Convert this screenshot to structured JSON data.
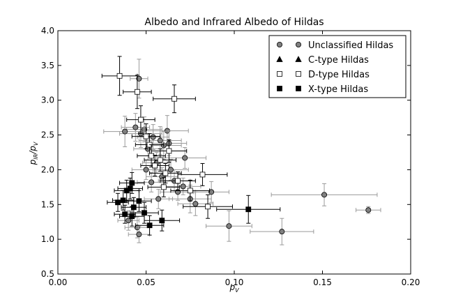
{
  "chart_data": {
    "type": "scatter",
    "title": "Albedo and Infrared Albedo of Hildas",
    "xlabel_main": "p",
    "xlabel_sub": "V",
    "ylabel_main": "p",
    "ylabel_sub_num": "IR",
    "ylabel_sep": "/p",
    "ylabel_sub_den": "V",
    "xlim": [
      0.0,
      0.2
    ],
    "ylim": [
      0.5,
      4.0
    ],
    "xticks": [
      0.0,
      0.05,
      0.1,
      0.15,
      0.2
    ],
    "xtick_labels": [
      "0.00",
      "0.05",
      "0.10",
      "0.15",
      "0.20"
    ],
    "yticks": [
      0.5,
      1.0,
      1.5,
      2.0,
      2.5,
      3.0,
      3.5,
      4.0
    ],
    "ytick_labels": [
      "0.5",
      "1.0",
      "1.5",
      "2.0",
      "2.5",
      "3.0",
      "3.5",
      "4.0"
    ],
    "grid": false,
    "legend_position": "top-right",
    "series": [
      {
        "name": "Unclassified Hildas",
        "marker": "circle",
        "color": "#808080",
        "error_color": "#9a9a9a",
        "points": [
          {
            "x": 0.176,
            "y": 1.42,
            "xerr": 0.007,
            "yerr": 0.05
          },
          {
            "x": 0.151,
            "y": 1.64,
            "xerr": 0.03,
            "yerr": 0.16
          },
          {
            "x": 0.127,
            "y": 1.11,
            "xerr": 0.018,
            "yerr": 0.19
          },
          {
            "x": 0.097,
            "y": 1.19,
            "xerr": 0.013,
            "yerr": 0.22
          },
          {
            "x": 0.087,
            "y": 1.68,
            "xerr": 0.01,
            "yerr": 0.15
          },
          {
            "x": 0.078,
            "y": 1.51,
            "xerr": 0.01,
            "yerr": 0.17
          },
          {
            "x": 0.075,
            "y": 1.58,
            "xerr": 0.012,
            "yerr": 0.2
          },
          {
            "x": 0.071,
            "y": 1.76,
            "xerr": 0.01,
            "yerr": 0.12
          },
          {
            "x": 0.066,
            "y": 1.84,
            "xerr": 0.009,
            "yerr": 0.16
          },
          {
            "x": 0.064,
            "y": 2.0,
            "xerr": 0.01,
            "yerr": 0.15
          },
          {
            "x": 0.062,
            "y": 2.56,
            "xerr": 0.012,
            "yerr": 0.22
          },
          {
            "x": 0.06,
            "y": 2.35,
            "xerr": 0.01,
            "yerr": 0.2
          },
          {
            "x": 0.058,
            "y": 2.42,
            "xerr": 0.012,
            "yerr": 0.2
          },
          {
            "x": 0.056,
            "y": 2.1,
            "xerr": 0.008,
            "yerr": 0.15
          },
          {
            "x": 0.054,
            "y": 2.47,
            "xerr": 0.009,
            "yerr": 0.18
          },
          {
            "x": 0.053,
            "y": 1.82,
            "xerr": 0.008,
            "yerr": 0.14
          },
          {
            "x": 0.051,
            "y": 2.3,
            "xerr": 0.008,
            "yerr": 0.16
          },
          {
            "x": 0.05,
            "y": 2.0,
            "xerr": 0.008,
            "yerr": 0.14
          },
          {
            "x": 0.049,
            "y": 2.58,
            "xerr": 0.01,
            "yerr": 0.18
          },
          {
            "x": 0.047,
            "y": 2.52,
            "xerr": 0.012,
            "yerr": 0.2
          },
          {
            "x": 0.046,
            "y": 3.31,
            "xerr": 0.005,
            "yerr": 0.28
          },
          {
            "x": 0.044,
            "y": 2.61,
            "xerr": 0.008,
            "yerr": 0.2
          },
          {
            "x": 0.045,
            "y": 1.17,
            "xerr": 0.007,
            "yerr": 0.15
          },
          {
            "x": 0.046,
            "y": 1.07,
            "xerr": 0.006,
            "yerr": 0.12
          },
          {
            "x": 0.04,
            "y": 1.27,
            "xerr": 0.006,
            "yerr": 0.14
          },
          {
            "x": 0.038,
            "y": 2.55,
            "xerr": 0.012,
            "yerr": 0.22
          },
          {
            "x": 0.057,
            "y": 1.58,
            "xerr": 0.008,
            "yerr": 0.14
          },
          {
            "x": 0.068,
            "y": 1.68,
            "xerr": 0.01,
            "yerr": 0.12
          },
          {
            "x": 0.072,
            "y": 2.17,
            "xerr": 0.012,
            "yerr": 0.15
          },
          {
            "x": 0.063,
            "y": 2.38,
            "xerr": 0.01,
            "yerr": 0.18
          },
          {
            "x": 0.059,
            "y": 1.9,
            "xerr": 0.009,
            "yerr": 0.13
          }
        ]
      },
      {
        "name": "C-type Hildas",
        "marker": "triangle",
        "color": "#000000",
        "error_color": "#000000",
        "points": []
      },
      {
        "name": "D-type Hildas",
        "marker": "square",
        "color": "#ffffff",
        "error_color": "#000000",
        "points": [
          {
            "x": 0.035,
            "y": 3.35,
            "xerr": 0.01,
            "yerr": 0.28
          },
          {
            "x": 0.045,
            "y": 3.12,
            "xerr": 0.008,
            "yerr": 0.24
          },
          {
            "x": 0.066,
            "y": 3.02,
            "xerr": 0.012,
            "yerr": 0.2
          },
          {
            "x": 0.047,
            "y": 2.72,
            "xerr": 0.008,
            "yerr": 0.2
          },
          {
            "x": 0.05,
            "y": 2.48,
            "xerr": 0.008,
            "yerr": 0.18
          },
          {
            "x": 0.052,
            "y": 2.36,
            "xerr": 0.008,
            "yerr": 0.16
          },
          {
            "x": 0.053,
            "y": 2.2,
            "xerr": 0.008,
            "yerr": 0.16
          },
          {
            "x": 0.055,
            "y": 2.06,
            "xerr": 0.008,
            "yerr": 0.15
          },
          {
            "x": 0.058,
            "y": 2.14,
            "xerr": 0.009,
            "yerr": 0.16
          },
          {
            "x": 0.061,
            "y": 1.95,
            "xerr": 0.009,
            "yerr": 0.14
          },
          {
            "x": 0.063,
            "y": 2.27,
            "xerr": 0.01,
            "yerr": 0.16
          },
          {
            "x": 0.068,
            "y": 1.84,
            "xerr": 0.01,
            "yerr": 0.13
          },
          {
            "x": 0.075,
            "y": 1.7,
            "xerr": 0.011,
            "yerr": 0.15
          },
          {
            "x": 0.082,
            "y": 1.93,
            "xerr": 0.014,
            "yerr": 0.16
          },
          {
            "x": 0.085,
            "y": 1.47,
            "xerr": 0.014,
            "yerr": 0.17
          },
          {
            "x": 0.06,
            "y": 1.75,
            "xerr": 0.009,
            "yerr": 0.14
          }
        ]
      },
      {
        "name": "X-type Hildas",
        "marker": "square",
        "color": "#000000",
        "error_color": "#000000",
        "points": [
          {
            "x": 0.108,
            "y": 1.43,
            "xerr": 0.018,
            "yerr": 0.2
          },
          {
            "x": 0.059,
            "y": 1.27,
            "xerr": 0.01,
            "yerr": 0.15
          },
          {
            "x": 0.052,
            "y": 1.2,
            "xerr": 0.008,
            "yerr": 0.14
          },
          {
            "x": 0.049,
            "y": 1.38,
            "xerr": 0.008,
            "yerr": 0.15
          },
          {
            "x": 0.046,
            "y": 1.55,
            "xerr": 0.007,
            "yerr": 0.15
          },
          {
            "x": 0.043,
            "y": 1.46,
            "xerr": 0.007,
            "yerr": 0.14
          },
          {
            "x": 0.042,
            "y": 1.33,
            "xerr": 0.007,
            "yerr": 0.14
          },
          {
            "x": 0.041,
            "y": 1.73,
            "xerr": 0.007,
            "yerr": 0.15
          },
          {
            "x": 0.042,
            "y": 1.81,
            "xerr": 0.007,
            "yerr": 0.15
          },
          {
            "x": 0.039,
            "y": 1.7,
            "xerr": 0.007,
            "yerr": 0.15
          },
          {
            "x": 0.038,
            "y": 1.36,
            "xerr": 0.006,
            "yerr": 0.13
          },
          {
            "x": 0.034,
            "y": 1.53,
            "xerr": 0.006,
            "yerr": 0.13
          },
          {
            "x": 0.037,
            "y": 1.56,
            "xerr": 0.006,
            "yerr": 0.14
          }
        ]
      }
    ]
  }
}
